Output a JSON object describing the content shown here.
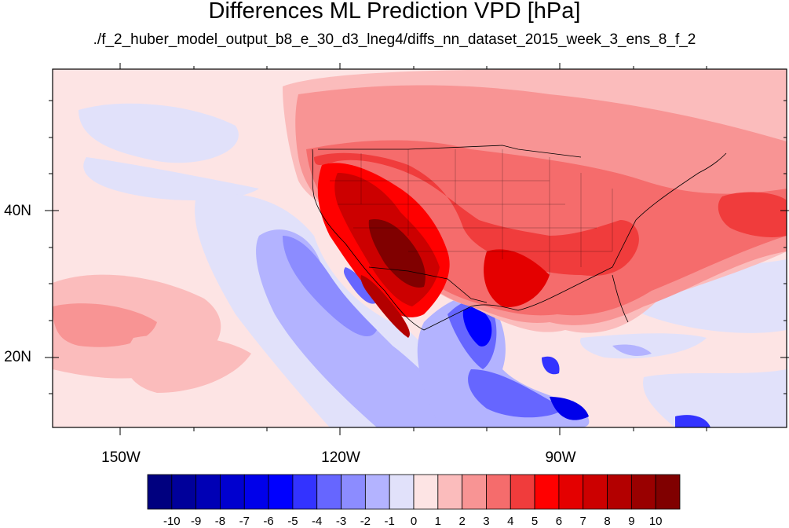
{
  "title": "Differences ML Prediction VPD [hPa]",
  "subtitle": "./f_2_huber_model_output_b8_e_30_d3_lneg4/diffs_nn_dataset_2015_week_3_ens_8_f_2",
  "lat_labels": [
    "40N",
    "20N"
  ],
  "lon_labels": [
    "150W",
    "120W",
    "90W"
  ],
  "colorbar": {
    "colors": [
      "#00007f",
      "#00009a",
      "#0000b5",
      "#0000cf",
      "#0000ea",
      "#0000ff",
      "#3333ff",
      "#6666ff",
      "#8c8cff",
      "#b3b3ff",
      "#e1e1fa",
      "#fde4e4",
      "#fbbcbc",
      "#f89494",
      "#f56c6c",
      "#f03c3c",
      "#ff0000",
      "#e40000",
      "#cc0000",
      "#b30000",
      "#990000",
      "#800000"
    ],
    "labels": [
      "-10",
      "-9",
      "-8",
      "-7",
      "-6",
      "-5",
      "-4",
      "-3",
      "-2",
      "-1",
      "0",
      "1",
      "2",
      "3",
      "4",
      "5",
      "6",
      "7",
      "8",
      "9",
      "10"
    ]
  },
  "map": {
    "ocean_background": "#fde4e4",
    "lon_range": [
      -160,
      -62
    ],
    "lat_range": [
      11,
      59
    ]
  }
}
